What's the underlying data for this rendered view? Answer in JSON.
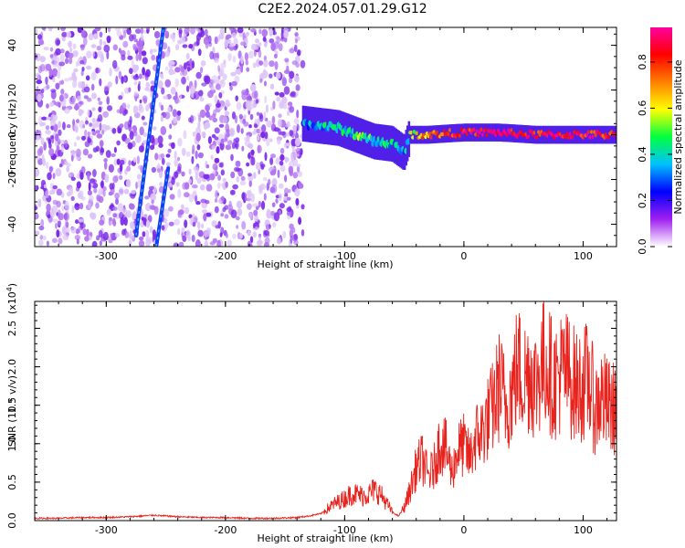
{
  "title": "C2E2.2024.057.01.29.G12",
  "chart_data": [
    {
      "type": "heatmap",
      "xlabel": "Height of straight line (km)",
      "ylabel": "Frequency (Hz)",
      "xlim": [
        -360,
        128
      ],
      "ylim": [
        -50,
        48
      ],
      "xticks": [
        -300,
        -200,
        -100,
        0,
        100
      ],
      "xtick_labels": [
        "-300",
        "-200",
        "-100",
        "0",
        "100"
      ],
      "yticks": [
        -40,
        -20,
        0,
        20,
        40
      ],
      "ytick_labels": [
        "-40",
        "-20",
        "0",
        "20",
        "40"
      ],
      "noise_region": {
        "x": [
          -360,
          -135
        ],
        "y": [
          -50,
          48
        ],
        "amplitude": 0.1
      },
      "streaks": [
        {
          "x_start": -275,
          "x_end": -252,
          "y_start": -45,
          "y_end": 48,
          "amplitude": 0.35
        },
        {
          "x_start": -258,
          "x_end": -248,
          "y_start": -50,
          "y_end": -15,
          "amplitude": 0.3
        }
      ],
      "band": [
        {
          "x": -135,
          "y": 5,
          "amplitude": 0.3
        },
        {
          "x": -120,
          "y": 4,
          "amplitude": 0.35
        },
        {
          "x": -105,
          "y": 3,
          "amplitude": 0.4
        },
        {
          "x": -90,
          "y": 0,
          "amplitude": 0.45
        },
        {
          "x": -75,
          "y": -3,
          "amplitude": 0.45
        },
        {
          "x": -60,
          "y": -4,
          "amplitude": 0.4
        },
        {
          "x": -50,
          "y": -8,
          "amplitude": 0.35
        },
        {
          "x": -45,
          "y": 0,
          "amplitude": 0.5
        },
        {
          "x": -30,
          "y": 0,
          "amplitude": 0.75
        },
        {
          "x": 0,
          "y": 1,
          "amplitude": 0.85
        },
        {
          "x": 30,
          "y": 1,
          "amplitude": 0.9
        },
        {
          "x": 60,
          "y": 0,
          "amplitude": 0.85
        },
        {
          "x": 90,
          "y": 0,
          "amplitude": 0.85
        },
        {
          "x": 128,
          "y": 0,
          "amplitude": 0.85
        }
      ],
      "colorbar": {
        "label": "Normalized spectral amplitude",
        "range": [
          0,
          0.95
        ],
        "ticks": [
          0.0,
          0.2,
          0.4,
          0.6,
          0.8
        ],
        "tick_labels": [
          "0.0",
          "0.2",
          "0.4",
          "0.6",
          "0.8"
        ],
        "colors": [
          "#ffffff",
          "#a020f0",
          "#0000ff",
          "#00c0ff",
          "#00ff40",
          "#ffff00",
          "#ff8000",
          "#ff0000",
          "#ff00a0"
        ]
      }
    },
    {
      "type": "line",
      "xlabel": "Height of straight line (km)",
      "ylabel": "SNR (10 * v/v)",
      "multiplier_label": "(x10",
      "multiplier_exp": "4",
      "multiplier_close": ")",
      "xlim": [
        -360,
        128
      ],
      "ylim": [
        0,
        2.85
      ],
      "xticks": [
        -300,
        -200,
        -100,
        0,
        100
      ],
      "xtick_labels": [
        "-300",
        "-200",
        "-100",
        "0",
        "100"
      ],
      "yticks": [
        0.0,
        0.5,
        1.0,
        1.5,
        2.0,
        2.5
      ],
      "ytick_labels": [
        "0.0",
        "0.5",
        "1.0",
        "1.5",
        "2.0",
        "2.5"
      ],
      "series": [
        {
          "color": "#e8221c",
          "x": [
            -360,
            -340,
            -320,
            -300,
            -280,
            -260,
            -240,
            -220,
            -200,
            -180,
            -160,
            -140,
            -130,
            -120,
            -110,
            -100,
            -95,
            -90,
            -85,
            -80,
            -75,
            -70,
            -65,
            -60,
            -55,
            -50,
            -45,
            -40,
            -35,
            -30,
            -25,
            -20,
            -15,
            -10,
            -5,
            0,
            5,
            10,
            15,
            20,
            25,
            30,
            35,
            40,
            45,
            50,
            55,
            60,
            65,
            70,
            75,
            80,
            85,
            90,
            95,
            100,
            105,
            110,
            115,
            120,
            125,
            128
          ],
          "y": [
            0.02,
            0.02,
            0.03,
            0.03,
            0.04,
            0.06,
            0.04,
            0.03,
            0.03,
            0.02,
            0.02,
            0.03,
            0.05,
            0.08,
            0.18,
            0.25,
            0.3,
            0.3,
            0.28,
            0.3,
            0.35,
            0.3,
            0.2,
            0.1,
            0.05,
            0.15,
            0.35,
            0.6,
            0.7,
            0.5,
            0.6,
            0.9,
            0.8,
            0.55,
            0.8,
            0.85,
            0.7,
            0.95,
            1.0,
            1.15,
            1.3,
            1.55,
            1.3,
            1.45,
            1.75,
            1.6,
            1.7,
            1.55,
            1.75,
            1.8,
            1.55,
            1.65,
            1.7,
            1.6,
            1.5,
            1.55,
            1.6,
            1.25,
            1.4,
            1.3,
            1.25,
            1.35
          ]
        }
      ]
    }
  ]
}
